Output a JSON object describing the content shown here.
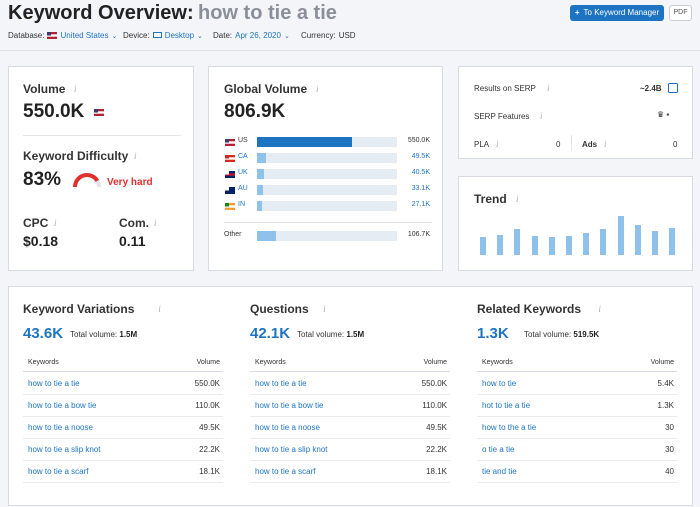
{
  "header": {
    "title": "Keyword Overview:",
    "keyword": "how to tie a tie",
    "button_manager": "To Keyword Manager",
    "button_pdf": "PDF",
    "filters": [
      {
        "label": "Database:",
        "value": "United States"
      },
      {
        "label": "Device:",
        "value": "Desktop"
      },
      {
        "label": "Date:",
        "value": "Apr 26, 2020"
      },
      {
        "label": "Currency:",
        "value": "USD"
      }
    ]
  },
  "volume": {
    "title": "Volume",
    "value": "550.0K"
  },
  "difficulty": {
    "title": "Keyword Difficulty",
    "value": 83,
    "label": "83%",
    "rating": "Very hard"
  },
  "cpc": {
    "title": "CPC",
    "value": "$0.18"
  },
  "competition": {
    "title": "Com.",
    "value": "0.11"
  },
  "global_volume": {
    "title": "Global Volume",
    "total": {
      "value": 806900,
      "label": "806.9K"
    },
    "countries": [
      {
        "code": "US",
        "value": 550000,
        "label": "550.0K"
      },
      {
        "code": "CA",
        "value": 49500,
        "label": "49.5K"
      },
      {
        "code": "UK",
        "value": 40500,
        "label": "40.5K"
      },
      {
        "code": "AU",
        "value": 33100,
        "label": "33.1K"
      },
      {
        "code": "IN",
        "value": 27100,
        "label": "27.1K"
      }
    ],
    "other": {
      "name": "Other",
      "value": 106700,
      "label": "106.7K"
    }
  },
  "serp": {
    "results_label": "Results on SERP",
    "results": "~2.4B",
    "features_label": "SERP Features",
    "pla_label": "PLA",
    "pla": "0",
    "ads_label": "Ads",
    "ads": "0"
  },
  "trend": {
    "title": "Trend",
    "values": [
      44,
      48,
      62,
      46,
      44,
      46,
      52,
      62,
      92,
      72,
      56,
      64
    ]
  },
  "panels": [
    {
      "title": "Keyword Variations",
      "count": "43.6K",
      "total_label": "Total volume:",
      "total": "1.5M",
      "col_keywords": "Keywords",
      "col_volume": "Volume",
      "rows": [
        [
          "how to tie a tie",
          "550.0K"
        ],
        [
          "how to tie a bow tie",
          "110.0K"
        ],
        [
          "how to tie a noose",
          "49.5K"
        ],
        [
          "how to tie a slip knot",
          "22.2K"
        ],
        [
          "how to tie a scarf",
          "18.1K"
        ]
      ]
    },
    {
      "title": "Questions",
      "count": "42.1K",
      "total_label": "Total volume:",
      "total": "1.5M",
      "col_keywords": "Keywords",
      "col_volume": "Volume",
      "rows": [
        [
          "how to tie a tie",
          "550.0K"
        ],
        [
          "how to tie a bow tie",
          "110.0K"
        ],
        [
          "how to tie a noose",
          "49.5K"
        ],
        [
          "how to tie a slip knot",
          "22.2K"
        ],
        [
          "how to tie a scarf",
          "18.1K"
        ]
      ]
    },
    {
      "title": "Related Keywords",
      "count": "1.3K",
      "total_label": "Total volume:",
      "total": "519.5K",
      "col_keywords": "Keywords",
      "col_volume": "Volume",
      "rows": [
        [
          "how to tie",
          "5.4K"
        ],
        [
          "hot to tie a tie",
          "1.3K"
        ],
        [
          "how to the a tie",
          "30"
        ],
        [
          "o tie a tie",
          "30"
        ],
        [
          "tie and tie",
          "40"
        ]
      ]
    }
  ]
}
